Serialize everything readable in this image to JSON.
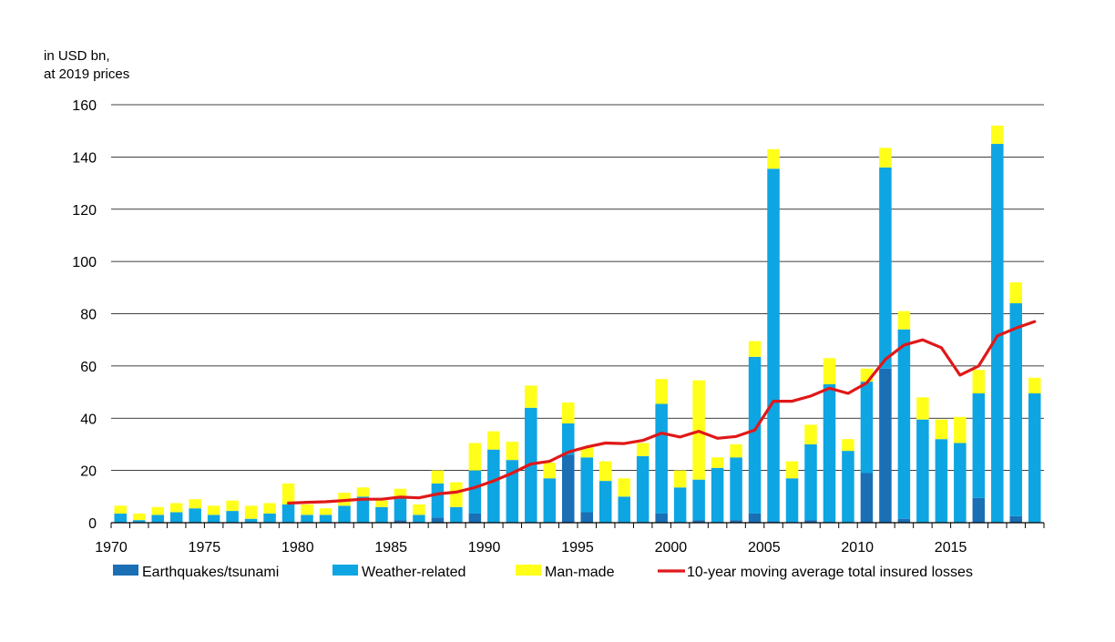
{
  "chart_data": {
    "type": "bar",
    "stacked": true,
    "unit_line1": "in USD bn,",
    "unit_line2": "at 2019 prices",
    "ylim": [
      0,
      160
    ],
    "yticks": [
      0,
      20,
      40,
      60,
      80,
      100,
      120,
      140,
      160
    ],
    "xtick_labels": [
      "1970",
      "1975",
      "1980",
      "1985",
      "1990",
      "1995",
      "2000",
      "2005",
      "2010",
      "2015"
    ],
    "grid": true,
    "legend_position": "bottom",
    "categories": [
      1970,
      1971,
      1972,
      1973,
      1974,
      1975,
      1976,
      1977,
      1978,
      1979,
      1980,
      1981,
      1982,
      1983,
      1984,
      1985,
      1986,
      1987,
      1988,
      1989,
      1990,
      1991,
      1992,
      1993,
      1994,
      1995,
      1996,
      1997,
      1998,
      1999,
      2000,
      2001,
      2002,
      2003,
      2004,
      2005,
      2006,
      2007,
      2008,
      2009,
      2010,
      2011,
      2012,
      2013,
      2014,
      2015,
      2016,
      2017,
      2018,
      2019
    ],
    "series": [
      {
        "name": "Earthquakes/tsunami",
        "color": "#1a6fb5",
        "values": [
          0,
          0,
          0,
          0,
          0,
          0,
          0,
          0,
          0,
          0,
          0,
          0,
          0,
          0,
          0,
          1,
          0,
          2,
          0,
          3.5,
          0,
          0,
          0,
          0,
          26,
          4,
          0,
          0,
          0,
          3.5,
          0,
          1,
          0,
          1,
          3.5,
          0.5,
          0,
          1,
          0,
          0,
          19,
          59,
          1.5,
          0,
          0,
          0,
          9.5,
          0,
          2.5,
          0
        ]
      },
      {
        "name": "Weather-related",
        "color": "#0ea5e3",
        "values": [
          3.5,
          1,
          3,
          4,
          5.5,
          3,
          4.5,
          1.5,
          3.5,
          7,
          3,
          3,
          6.5,
          10,
          6,
          9,
          3,
          13,
          6,
          16.5,
          28,
          24,
          44,
          17,
          12,
          21,
          16,
          10,
          25.5,
          42,
          13.5,
          15.5,
          21,
          24,
          60,
          135,
          17,
          29,
          53,
          27.5,
          35,
          77,
          72.5,
          39.5,
          32,
          30.5,
          40,
          145,
          81.5,
          49.5
        ]
      },
      {
        "name": "Man-made",
        "color": "#ffff1a",
        "values": [
          3,
          2.5,
          3,
          3.5,
          3.5,
          3.5,
          4,
          5,
          4,
          8,
          4,
          2.5,
          5,
          3.5,
          2.5,
          3,
          4,
          5,
          9.5,
          10.5,
          7,
          7,
          8.5,
          6,
          8,
          4,
          7.5,
          7,
          5,
          9.5,
          6.5,
          38,
          4,
          5,
          6,
          7.5,
          6.5,
          7.5,
          10,
          4.5,
          5,
          7.5,
          7,
          8.5,
          7.5,
          10,
          9,
          7,
          8,
          6
        ]
      }
    ],
    "line_series": {
      "name": "10-year moving average total insured losses",
      "color": "#e01818",
      "x": [
        1979,
        1980,
        1981,
        1982,
        1983,
        1984,
        1985,
        1986,
        1987,
        1988,
        1989,
        1990,
        1991,
        1992,
        1993,
        1994,
        1995,
        1996,
        1997,
        1998,
        1999,
        2000,
        2001,
        2002,
        2003,
        2004,
        2005,
        2006,
        2007,
        2008,
        2009,
        2010,
        2011,
        2012,
        2013,
        2014,
        2015,
        2016,
        2017,
        2018,
        2019
      ],
      "values": [
        7.5,
        7.8,
        8,
        8.5,
        9,
        9,
        9.8,
        9.5,
        11,
        11.7,
        13.5,
        16,
        19,
        22.5,
        23.5,
        27,
        29,
        30.5,
        30.3,
        31.5,
        34.3,
        32.8,
        35,
        32.3,
        33,
        35.5,
        46.5,
        46.5,
        48.5,
        51.5,
        49.5,
        53.5,
        62.5,
        68,
        70,
        67,
        56.5,
        60,
        71.5,
        74.5,
        77
      ]
    }
  }
}
